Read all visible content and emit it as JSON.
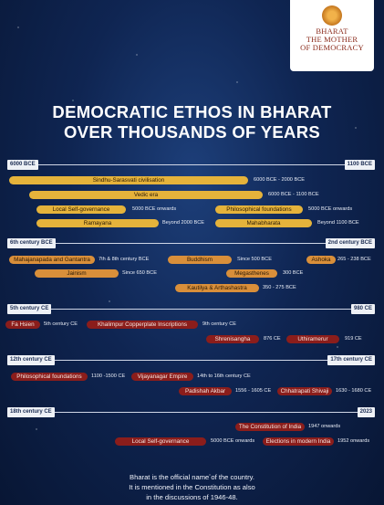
{
  "logo": {
    "line1": "BHARAT",
    "line2": "THE MOTHER",
    "line3": "OF DEMOCRACY"
  },
  "title": {
    "line1": "DEMOCRATIC ETHOS IN BHARAT",
    "line2": "OVER THOUSANDS OF YEARS"
  },
  "sections": {
    "s1": {
      "start": "6000 BCE",
      "end": "1100 BCE",
      "items": [
        {
          "name": "Sindhu-Sarasvati civilisation",
          "date": "6000 BCE - 2000 BCE"
        },
        {
          "name": "Vedic era",
          "date": "6000 BCE - 1100 BCE"
        },
        {
          "name": "Local Self-governance",
          "date": "5000 BCE onwards"
        },
        {
          "name": "Philosophical foundations",
          "date": "5000 BCE onwards"
        },
        {
          "name": "Ramayana",
          "date": "Beyond 2000 BCE"
        },
        {
          "name": "Mahabharata",
          "date": "Beyond 1100 BCE"
        }
      ]
    },
    "s2": {
      "start": "6th century BCE",
      "end": "2nd century BCE",
      "items": [
        {
          "name": "Mahajanapada and Gantantra",
          "date": "7th & 8th century BCE"
        },
        {
          "name": "Buddhism",
          "date": "Since 500 BCE"
        },
        {
          "name": "Ashoka",
          "date": "265 - 238 BCE"
        },
        {
          "name": "Jainism",
          "date": "Since 650 BCE"
        },
        {
          "name": "Megasthenes",
          "date": "300 BCE"
        },
        {
          "name": "Kautilya & Arthashastra",
          "date": "350 - 275 BCE"
        }
      ]
    },
    "s3": {
      "start": "5th century CE",
      "end": "980 CE",
      "items": [
        {
          "name": "Fa Hsien",
          "date": "5th century CE"
        },
        {
          "name": "Khalimpur Copperplate Inscriptions",
          "date": "9th century CE"
        },
        {
          "name": "Shrenisangha",
          "date": "876 CE"
        },
        {
          "name": "Uthiramerur",
          "date": "919 CE"
        }
      ]
    },
    "s4": {
      "start": "12th century CE",
      "end": "17th century CE",
      "items": [
        {
          "name": "Philosophical foundations",
          "date": "1100 -1500 CE"
        },
        {
          "name": "Vijayanagar Empire",
          "date": "14th to 16th century CE"
        },
        {
          "name": "Padishah Akbar",
          "date": "1556 - 1605 CE"
        },
        {
          "name": "Chhatrapati Shivaji",
          "date": "1630 - 1680 CE"
        }
      ]
    },
    "s5": {
      "start": "18th century CE",
      "end": "2023",
      "items": [
        {
          "name": "The Constitution of India",
          "date": "1947 onwards"
        },
        {
          "name": "Local Self-governance",
          "date": "5000 BCE onwards"
        },
        {
          "name": "Elections in modern India",
          "date": "1952 onwards"
        }
      ]
    }
  },
  "footer": {
    "line1": "Bharat is the official name of the country.",
    "line2": "It is mentioned in the Constitution as also",
    "line3": "in the discussions of 1946-48."
  },
  "colors": {
    "gold": "#e5b33b",
    "tan": "#d98f3a",
    "red": "#8b1d1b",
    "navy": "#0f2552"
  }
}
